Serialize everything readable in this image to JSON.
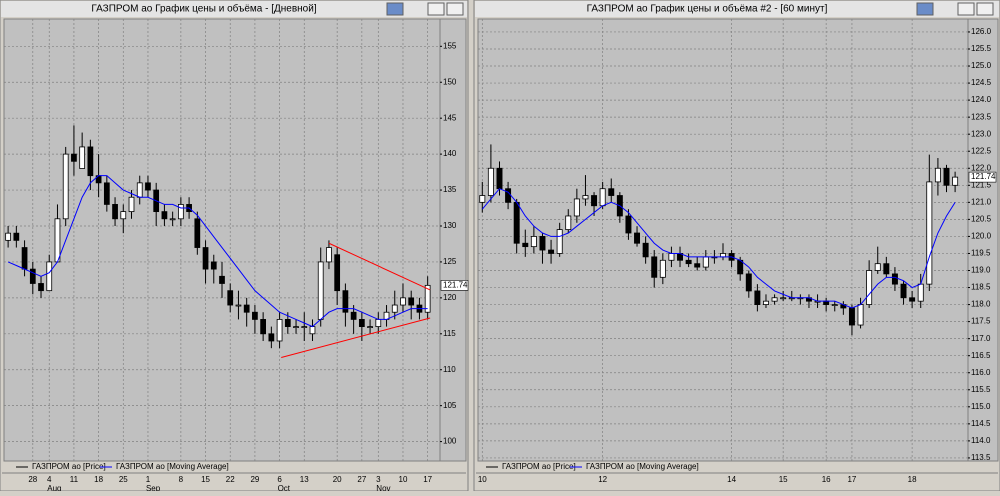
{
  "chart_data": [
    {
      "type": "candlestick",
      "title": "ГАЗПРОМ ао График цены и объёма - [Дневной]",
      "categories": [
        null,
        null,
        null,
        "28",
        null,
        "4",
        null,
        null,
        "11",
        null,
        null,
        "18",
        null,
        null,
        "25",
        null,
        null,
        "1",
        null,
        null,
        null,
        "8",
        null,
        null,
        "15",
        null,
        null,
        "22",
        null,
        null,
        "29",
        null,
        null,
        "6",
        null,
        null,
        "13",
        null,
        null,
        null,
        "20",
        null,
        null,
        "27",
        null,
        "3",
        null,
        null,
        "10",
        null,
        null,
        "17"
      ],
      "months": [
        null,
        null,
        null,
        null,
        null,
        "Aug",
        null,
        null,
        null,
        null,
        null,
        null,
        null,
        null,
        null,
        null,
        null,
        "Sep",
        null,
        null,
        null,
        null,
        null,
        null,
        null,
        null,
        null,
        null,
        null,
        null,
        null,
        null,
        null,
        "Oct",
        null,
        null,
        null,
        null,
        null,
        null,
        null,
        null,
        null,
        null,
        null,
        "Nov",
        null,
        null,
        null,
        null,
        null,
        null
      ],
      "series": [
        {
          "name": "ГАЗПРОМ ао [Price]",
          "color": "#000000",
          "open": [
            128,
            129,
            127,
            124,
            122,
            121,
            125,
            131,
            140,
            138,
            141,
            137,
            136,
            133,
            131,
            132,
            134,
            136,
            135,
            132,
            131,
            131,
            133,
            131,
            127,
            125,
            123,
            121,
            119,
            119,
            118,
            117,
            115,
            114,
            117,
            116,
            116,
            115,
            117,
            125,
            126,
            121,
            118,
            117,
            116,
            116,
            117,
            118,
            119,
            120,
            119,
            118
          ],
          "high": [
            130,
            130,
            128,
            125,
            123,
            126,
            133,
            141,
            144,
            143,
            142,
            140,
            137,
            134,
            133,
            135,
            137,
            137,
            136,
            133,
            132,
            134,
            134,
            132,
            128,
            126,
            125,
            122,
            121,
            120,
            119,
            118,
            116,
            118,
            118,
            117,
            118,
            117,
            127,
            128,
            127,
            122,
            119,
            118,
            117,
            118,
            119,
            121,
            122,
            121,
            120,
            123
          ],
          "low": [
            127,
            127,
            123,
            120.5,
            120,
            121,
            125,
            130,
            137,
            138,
            135,
            134,
            132,
            130,
            129,
            131,
            133,
            134,
            130,
            130,
            130,
            130,
            131,
            126,
            122,
            122,
            120,
            118,
            117,
            116,
            115,
            114,
            113,
            113,
            115,
            115,
            114,
            114,
            116,
            124,
            119,
            116,
            115,
            114,
            115,
            115,
            116,
            117,
            118,
            117,
            117,
            117
          ],
          "close": [
            129,
            128,
            124,
            122,
            121,
            125,
            131,
            140,
            139,
            141,
            137,
            136,
            133,
            131,
            132,
            134,
            136,
            135,
            132,
            131,
            131,
            133,
            132,
            127,
            124,
            124,
            122,
            119,
            119,
            118,
            117,
            115,
            114,
            117,
            116,
            116,
            116,
            116,
            125,
            127,
            121,
            118,
            117,
            116,
            116,
            117,
            118,
            119,
            120,
            119,
            118,
            121.74
          ]
        },
        {
          "name": "ГАЗПРОМ ао [Moving Average]",
          "color": "#0000ff",
          "values": [
            125,
            124.5,
            124,
            123.5,
            123,
            123.5,
            125,
            128,
            131,
            134,
            136,
            137,
            137,
            136,
            135,
            134.5,
            134,
            134,
            133.5,
            133,
            133,
            132.5,
            132.5,
            131.5,
            130,
            128.5,
            127,
            125.5,
            124,
            122.5,
            121,
            120,
            119,
            118,
            117.5,
            117,
            116.5,
            116,
            117,
            118,
            118.5,
            118.5,
            118.5,
            118,
            117.5,
            117,
            117,
            117.5,
            118,
            118.5,
            118.5,
            118.5
          ]
        }
      ],
      "trendlines": [
        {
          "color": "#ff0000",
          "from": [
            39,
            127.6
          ],
          "to": [
            51.3,
            121.1
          ]
        },
        {
          "color": "#ff0000",
          "from": [
            33.2,
            111.7
          ],
          "to": [
            51.3,
            117.2
          ]
        }
      ],
      "ylim": [
        97.3,
        158.8
      ],
      "yticks": [
        100,
        105,
        110,
        115,
        120,
        125,
        130,
        135,
        140,
        145,
        150,
        155
      ],
      "grid": true
    },
    {
      "type": "candlestick",
      "title": "ГАЗПРОМ ао График цены и объёма #2 - [60 минут]",
      "categories": [
        "10",
        null,
        null,
        null,
        null,
        null,
        null,
        null,
        null,
        null,
        null,
        null,
        null,
        null,
        "12",
        null,
        null,
        null,
        null,
        null,
        null,
        null,
        null,
        null,
        null,
        null,
        null,
        null,
        null,
        "14",
        null,
        null,
        null,
        null,
        null,
        "15",
        null,
        null,
        null,
        null,
        "16",
        null,
        null,
        "17",
        null,
        null,
        null,
        null,
        null,
        null,
        "18",
        null,
        null,
        null,
        null,
        null
      ],
      "series": [
        {
          "name": "ГАЗПРОМ ао [Price]",
          "color": "#000000",
          "open": [
            121.0,
            121.2,
            122.0,
            121.4,
            121.0,
            119.8,
            119.7,
            120.0,
            119.6,
            119.5,
            120.2,
            120.6,
            121.1,
            121.2,
            120.9,
            121.4,
            121.2,
            120.6,
            120.1,
            119.8,
            119.4,
            118.8,
            119.3,
            119.5,
            119.3,
            119.2,
            119.1,
            119.4,
            119.4,
            119.5,
            119.3,
            118.9,
            118.4,
            118.0,
            118.1,
            118.2,
            118.2,
            118.2,
            118.2,
            118.1,
            118.1,
            118.0,
            118.0,
            117.9,
            117.4,
            118.0,
            119.0,
            119.2,
            118.9,
            118.6,
            118.2,
            118.1,
            118.6,
            121.6,
            122.0,
            121.5
          ],
          "high": [
            121.6,
            122.7,
            122.2,
            121.6,
            121.1,
            120.2,
            120.3,
            120.1,
            119.9,
            120.4,
            120.8,
            121.4,
            121.8,
            121.3,
            121.6,
            121.7,
            121.3,
            120.8,
            120.3,
            120.0,
            119.6,
            119.5,
            119.7,
            119.7,
            119.5,
            119.4,
            119.6,
            119.6,
            119.8,
            119.6,
            119.4,
            119.0,
            118.6,
            118.3,
            118.3,
            118.4,
            118.4,
            118.3,
            118.3,
            118.3,
            118.2,
            118.1,
            118.1,
            118.0,
            118.2,
            119.3,
            119.7,
            119.4,
            119.1,
            118.7,
            118.4,
            118.9,
            122.4,
            122.3,
            122.1,
            121.9
          ],
          "low": [
            120.7,
            121.0,
            121.2,
            120.8,
            119.5,
            119.4,
            119.5,
            119.2,
            119.2,
            119.4,
            120.1,
            120.4,
            120.9,
            120.6,
            120.8,
            121.0,
            120.4,
            119.9,
            119.7,
            119.2,
            118.5,
            118.6,
            119.1,
            119.1,
            119.1,
            119.0,
            119.0,
            119.2,
            119.3,
            119.1,
            118.7,
            118.2,
            117.8,
            117.9,
            118.0,
            118.1,
            118.1,
            118.0,
            117.9,
            117.9,
            117.8,
            117.8,
            117.7,
            117.1,
            117.3,
            117.9,
            118.9,
            118.8,
            118.4,
            118.0,
            117.9,
            117.9,
            118.4,
            121.2,
            121.3,
            121.3
          ],
          "close": [
            121.2,
            122.0,
            121.4,
            121.0,
            119.8,
            119.7,
            120.0,
            119.6,
            119.5,
            120.2,
            120.6,
            121.1,
            121.2,
            120.9,
            121.4,
            121.2,
            120.6,
            120.1,
            119.8,
            119.4,
            118.8,
            119.3,
            119.5,
            119.3,
            119.2,
            119.1,
            119.4,
            119.4,
            119.5,
            119.3,
            118.9,
            118.4,
            118.0,
            118.1,
            118.2,
            118.2,
            118.2,
            118.2,
            118.1,
            118.1,
            118.0,
            118.0,
            117.9,
            117.4,
            118.0,
            119.0,
            119.2,
            118.9,
            118.6,
            118.2,
            118.1,
            118.6,
            121.6,
            122.0,
            121.5,
            121.74
          ]
        },
        {
          "name": "ГАЗПРОМ ао [Moving Average]",
          "color": "#0000ff",
          "values": [
            120.8,
            121.1,
            121.4,
            121.3,
            121.0,
            120.6,
            120.3,
            120.1,
            120.0,
            120.0,
            120.1,
            120.3,
            120.5,
            120.7,
            120.9,
            121.0,
            120.9,
            120.7,
            120.4,
            120.1,
            119.8,
            119.6,
            119.5,
            119.5,
            119.4,
            119.4,
            119.4,
            119.4,
            119.4,
            119.4,
            119.3,
            119.1,
            118.8,
            118.6,
            118.4,
            118.3,
            118.2,
            118.2,
            118.2,
            118.1,
            118.1,
            118.1,
            118.0,
            117.9,
            118.0,
            118.3,
            118.6,
            118.8,
            118.8,
            118.7,
            118.5,
            118.6,
            119.4,
            120.1,
            120.6,
            121.0
          ]
        }
      ],
      "ylim": [
        113.41,
        126.38
      ],
      "yticks": [
        113.5,
        {
          "value": 114,
          "label": "114.0"
        },
        114.5,
        {
          "value": 115,
          "label": "115.0"
        },
        115.5,
        {
          "value": 116,
          "label": "116.0"
        },
        116.5,
        {
          "value": 117,
          "label": "117.0"
        },
        117.5,
        {
          "value": 118,
          "label": "118.0"
        },
        118.5,
        {
          "value": 119,
          "label": "119.0"
        },
        119.5,
        {
          "value": 120,
          "label": "120.0"
        },
        120.5,
        {
          "value": 121,
          "label": "121.0"
        },
        121.5,
        {
          "value": 122,
          "label": "122.0"
        },
        122.5,
        {
          "value": 123,
          "label": "123.0"
        },
        123.5,
        {
          "value": 124,
          "label": "124.0"
        },
        124.5,
        {
          "value": 125,
          "label": "125.0"
        },
        125.5,
        {
          "value": 126,
          "label": "126.0"
        }
      ],
      "grid": true
    }
  ]
}
